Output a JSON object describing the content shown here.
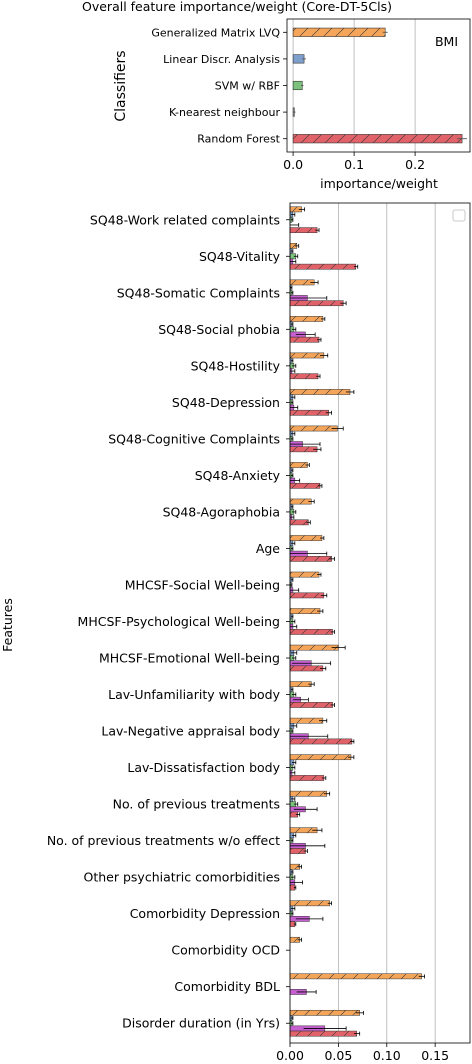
{
  "chart_data": [
    {
      "type": "bar",
      "orientation": "horizontal",
      "title": "Overall feature importance/weight (Core-DT-5Cls)",
      "xlabel": "importance/weight",
      "ylabel": "Classifiers",
      "annotation": "BMI",
      "xlim": [
        -0.01,
        0.29
      ],
      "xticks": [
        0.0,
        0.1,
        0.2
      ],
      "xtick_labels": [
        "0.0",
        "0.1",
        "0.2"
      ],
      "grid": "vertical",
      "categories": [
        "Generalized Matrix LVQ",
        "Linear Discr. Analysis",
        "SVM w/ RBF",
        "K-nearest neighbour",
        "Random Forest"
      ],
      "values": [
        0.151,
        0.018,
        0.015,
        0.002,
        0.277
      ],
      "errors": [
        0.004,
        0.003,
        0.002,
        0.002,
        0.008
      ],
      "colors": [
        "#f5a55a",
        "#7e9ecb",
        "#7cc27c",
        "#9a9a9a",
        "#e2626a"
      ],
      "hatched": [
        true,
        false,
        false,
        false,
        true
      ]
    },
    {
      "type": "bar",
      "orientation": "horizontal",
      "xlabel": "",
      "ylabel": "Features",
      "xlim": [
        0.0,
        0.186
      ],
      "xticks": [
        0.0,
        0.05,
        0.1,
        0.15
      ],
      "xtick_labels": [
        "0.00",
        "0.05",
        "0.10",
        "0.15"
      ],
      "grid": "vertical",
      "legend": "top-right",
      "categories": [
        "SQ48-Work related complaints",
        "SQ48-Vitality",
        "SQ48-Somatic Complaints",
        "SQ48-Social phobia",
        "SQ48-Hostility",
        "SQ48-Depression",
        "SQ48-Cognitive Complaints",
        "SQ48-Anxiety",
        "SQ48-Agoraphobia",
        "Age",
        "MHCSF-Social Well-being",
        "MHCSF-Psychological Well-being",
        "MHCSF-Emotional Well-being",
        "Lav-Unfamiliarity with body",
        "Lav-Negative appraisal body",
        "Lav-Dissatisfaction body",
        "No. of previous treatments",
        "No. of previous treatments w/o effect",
        "Other psychiatric comorbidities",
        "Comorbidity Depression",
        "Comorbidity OCD",
        "Comorbidity BDL",
        "Disorder duration (in Yrs)"
      ],
      "series": [
        {
          "color": "#f5a55a",
          "hatched": true,
          "values": [
            0.012,
            0.007,
            0.025,
            0.034,
            0.035,
            0.062,
            0.049,
            0.018,
            0.022,
            0.033,
            0.03,
            0.031,
            0.05,
            0.022,
            0.034,
            0.063,
            0.038,
            0.028,
            0.01,
            0.041,
            0.01,
            0.136,
            0.072
          ],
          "errors": [
            0.003,
            0.002,
            0.004,
            0.002,
            0.004,
            0.004,
            0.006,
            0.002,
            0.003,
            0.002,
            0.002,
            0.003,
            0.007,
            0.003,
            0.004,
            0.003,
            0.003,
            0.005,
            0.002,
            0.002,
            0.002,
            0.003,
            0.004
          ]
        },
        {
          "color": "#7e9ecb",
          "hatched": false,
          "values": [
            0.003,
            0.002,
            0.001,
            0.002,
            0.002,
            0.003,
            0.003,
            0.002,
            0.002,
            0.003,
            0.002,
            0.002,
            0.004,
            0.002,
            0.004,
            0.004,
            0.003,
            0.004,
            0.002,
            0.003,
            0.0,
            0.0,
            0.002
          ],
          "errors": [
            0.002,
            0.001,
            0.001,
            0.001,
            0.001,
            0.002,
            0.002,
            0.001,
            0.001,
            0.002,
            0.001,
            0.001,
            0.003,
            0.001,
            0.003,
            0.002,
            0.002,
            0.002,
            0.001,
            0.002,
            0.0,
            0.0,
            0.001
          ]
        },
        {
          "color": "#7cc27c",
          "hatched": false,
          "values": [
            0.002,
            0.006,
            0.002,
            0.004,
            0.004,
            0.002,
            0.002,
            0.002,
            0.004,
            0.002,
            0.001,
            0.003,
            0.004,
            0.004,
            0.002,
            0.003,
            0.006,
            0.002,
            0.003,
            0.002,
            0.0,
            0.0,
            0.002
          ],
          "errors": [
            0.001,
            0.002,
            0.001,
            0.002,
            0.002,
            0.001,
            0.001,
            0.001,
            0.002,
            0.001,
            0.001,
            0.002,
            0.002,
            0.002,
            0.001,
            0.002,
            0.002,
            0.001,
            0.002,
            0.001,
            0.0,
            0.0,
            0.001
          ]
        },
        {
          "color": "#c65fd0",
          "hatched": false,
          "values": [
            0.0,
            0.003,
            0.018,
            0.016,
            0.002,
            0.004,
            0.013,
            0.005,
            0.002,
            0.018,
            0.003,
            0.003,
            0.022,
            0.011,
            0.019,
            0.002,
            0.016,
            0.016,
            0.005,
            0.02,
            0.0,
            0.017,
            0.036
          ],
          "errors": [
            0.009,
            0.003,
            0.02,
            0.01,
            0.003,
            0.004,
            0.018,
            0.005,
            0.002,
            0.02,
            0.006,
            0.004,
            0.02,
            0.008,
            0.02,
            0.003,
            0.012,
            0.02,
            0.008,
            0.014,
            0.0,
            0.01,
            0.022
          ]
        },
        {
          "color": "#e2626a",
          "hatched": true,
          "values": [
            0.028,
            0.068,
            0.055,
            0.03,
            0.029,
            0.04,
            0.028,
            0.031,
            0.019,
            0.043,
            0.035,
            0.044,
            0.034,
            0.044,
            0.064,
            0.035,
            0.008,
            0.016,
            0.005,
            0.005,
            0.0,
            0.0,
            0.069
          ],
          "errors": [
            0.002,
            0.002,
            0.003,
            0.002,
            0.002,
            0.003,
            0.004,
            0.002,
            0.002,
            0.003,
            0.003,
            0.002,
            0.003,
            0.002,
            0.002,
            0.002,
            0.002,
            0.002,
            0.001,
            0.001,
            0.0,
            0.0,
            0.003
          ]
        }
      ]
    }
  ]
}
